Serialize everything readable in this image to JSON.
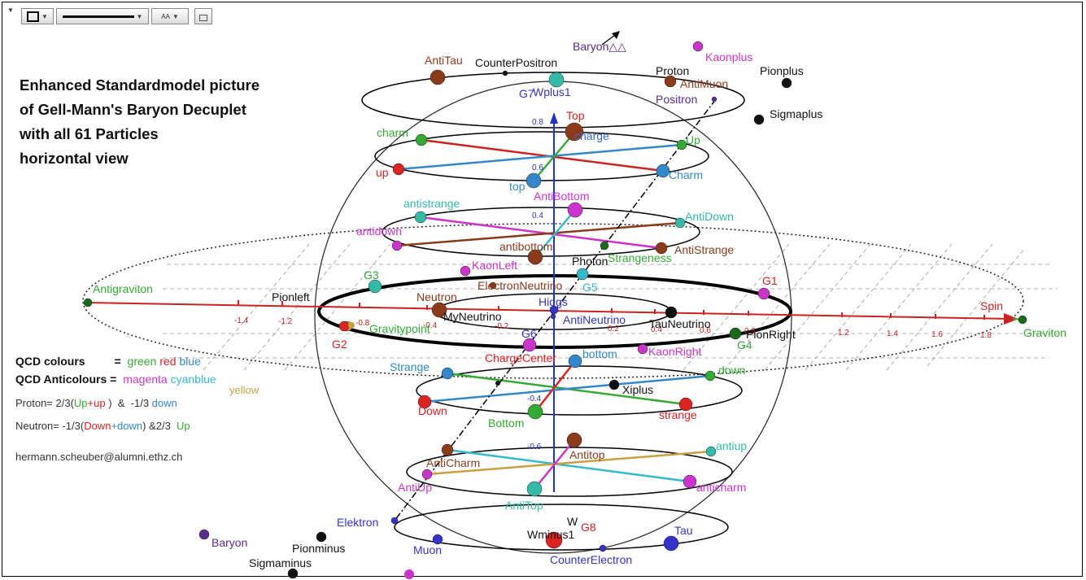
{
  "toolbar": {
    "style_label": "AA",
    "lock_icon": "lock-icon",
    "square_icon": "square-icon",
    "line_icon": "line-style-icon"
  },
  "title": {
    "line1": "Enhanced Standardmodel picture",
    "line2": "of Gell-Mann's Baryon Decuplet",
    "line3": "with all 61 Particles",
    "line4": "horizontal view"
  },
  "legend": {
    "qcd_colours_label": "QCD colours",
    "eq": "=",
    "colours": [
      "green",
      "red",
      "blue"
    ],
    "qcd_anticolours_label": "QCD Anticolours =",
    "anticolours": [
      "magenta",
      "cyanblue",
      "yellow"
    ],
    "proton_formula": {
      "prefix": "Proton= 2/3(",
      "a": "Up",
      "plus": "+",
      "b": "up",
      "mid": " )  &  -1/3 ",
      "c": "down"
    },
    "neutron_formula": {
      "prefix": "Neutron= -1/3(",
      "a": "Down",
      "plus": "+",
      "b": "down",
      "mid": ") &2/3  ",
      "c": "Up"
    },
    "email": "hermann.scheuber@alumni.ethz.ch"
  },
  "axis": {
    "spin_label": "Spin",
    "x_ticks": [
      "-1.4",
      "-1.2",
      "-0.8",
      "-0.4",
      "-0.2",
      "0.2",
      "0.4",
      "0.6",
      "0.8",
      "1.2",
      "1.4",
      "1.6",
      "1.8"
    ],
    "y_ticks": [
      "0.8",
      "0.6",
      "0.4",
      "-0.4",
      "-0.6"
    ]
  },
  "particles": [
    {
      "name": "AntiTau",
      "color": "#8b3a1a"
    },
    {
      "name": "CounterPositron",
      "color": "#111111"
    },
    {
      "name": "Baryon△△",
      "color": "#5a2d91"
    },
    {
      "name": "Kaonplus",
      "color": "#cc33cc"
    },
    {
      "name": "Pionplus",
      "color": "#111111"
    },
    {
      "name": "Proton",
      "color": "#111111"
    },
    {
      "name": "AntiMuon",
      "color": "#8b3a1a"
    },
    {
      "name": "Positron",
      "color": "#5a2d91"
    },
    {
      "name": "Sigmaplus",
      "color": "#111111"
    },
    {
      "name": "G7",
      "color": "#3333cc"
    },
    {
      "name": "Wplus1",
      "color": "#3333cc"
    },
    {
      "name": "Top",
      "color": "#dd2222"
    },
    {
      "name": "charge",
      "color": "#3366cc"
    },
    {
      "name": "charm",
      "color": "#33aa33"
    },
    {
      "name": "Up",
      "color": "#33aa33"
    },
    {
      "name": "up",
      "color": "#dd2222"
    },
    {
      "name": "Charm",
      "color": "#3388cc"
    },
    {
      "name": "top",
      "color": "#3388cc"
    },
    {
      "name": "AntiBottom",
      "color": "#cc33cc"
    },
    {
      "name": "antistrange",
      "color": "#33bbaa"
    },
    {
      "name": "AntiDown",
      "color": "#33bbaa"
    },
    {
      "name": "antidown",
      "color": "#cc33cc"
    },
    {
      "name": "antibottom",
      "color": "#8b3a1a"
    },
    {
      "name": "AntiStrange",
      "color": "#8b3a1a"
    },
    {
      "name": "Strangeness",
      "color": "#33aa33"
    },
    {
      "name": "KaonLeft",
      "color": "#cc33cc"
    },
    {
      "name": "Photon",
      "color": "#111111"
    },
    {
      "name": "Antigraviton",
      "color": "#33aa33"
    },
    {
      "name": "G3",
      "color": "#33aa33"
    },
    {
      "name": "Pionleft",
      "color": "#111111"
    },
    {
      "name": "ElectronNeutrino",
      "color": "#8b3a1a"
    },
    {
      "name": "G5",
      "color": "#33bbcc"
    },
    {
      "name": "G1",
      "color": "#dd2222"
    },
    {
      "name": "Neutron",
      "color": "#8b3a1a"
    },
    {
      "name": "Higgs",
      "color": "#3333cc"
    },
    {
      "name": "MyNeutrino",
      "color": "#111111"
    },
    {
      "name": "AntiNeutrino",
      "color": "#3333cc"
    },
    {
      "name": "TauNeutrino",
      "color": "#111111"
    },
    {
      "name": "Gravitypoint",
      "color": "#33aa33"
    },
    {
      "name": "PionRight",
      "color": "#111111"
    },
    {
      "name": "Graviton",
      "color": "#33aa33"
    },
    {
      "name": "G2",
      "color": "#dd2222"
    },
    {
      "name": "G6",
      "color": "#3333cc"
    },
    {
      "name": "G4",
      "color": "#33aa33"
    },
    {
      "name": "ChargeCenter",
      "color": "#dd2222"
    },
    {
      "name": "bottom",
      "color": "#3388cc"
    },
    {
      "name": "KaonRight",
      "color": "#cc33cc"
    },
    {
      "name": "Strange",
      "color": "#3388cc"
    },
    {
      "name": "down",
      "color": "#33aa33"
    },
    {
      "name": "Xiplus",
      "color": "#111111"
    },
    {
      "name": "Down",
      "color": "#dd2222"
    },
    {
      "name": "Bottom",
      "color": "#33aa33"
    },
    {
      "name": "strange",
      "color": "#dd2222"
    },
    {
      "name": "antiup",
      "color": "#33bbaa"
    },
    {
      "name": "Antitop",
      "color": "#8b3a1a"
    },
    {
      "name": "AntiCharm",
      "color": "#8b3a1a"
    },
    {
      "name": "AntiUp",
      "color": "#cc33cc"
    },
    {
      "name": "anticharm",
      "color": "#cc33cc"
    },
    {
      "name": "AntiTop",
      "color": "#33bbaa"
    },
    {
      "name": "Elektron",
      "color": "#3333cc"
    },
    {
      "name": "W",
      "color": "#111111"
    },
    {
      "name": "Wminus1",
      "color": "#111111"
    },
    {
      "name": "G8",
      "color": "#dd2222"
    },
    {
      "name": "Tau",
      "color": "#3333cc"
    },
    {
      "name": "Baryon",
      "color": "#5a2d91"
    },
    {
      "name": "Pionminus",
      "color": "#111111"
    },
    {
      "name": "Muon",
      "color": "#3333cc"
    },
    {
      "name": "CounterElectron",
      "color": "#3333cc"
    },
    {
      "name": "Sigmaminus",
      "color": "#111111"
    }
  ]
}
